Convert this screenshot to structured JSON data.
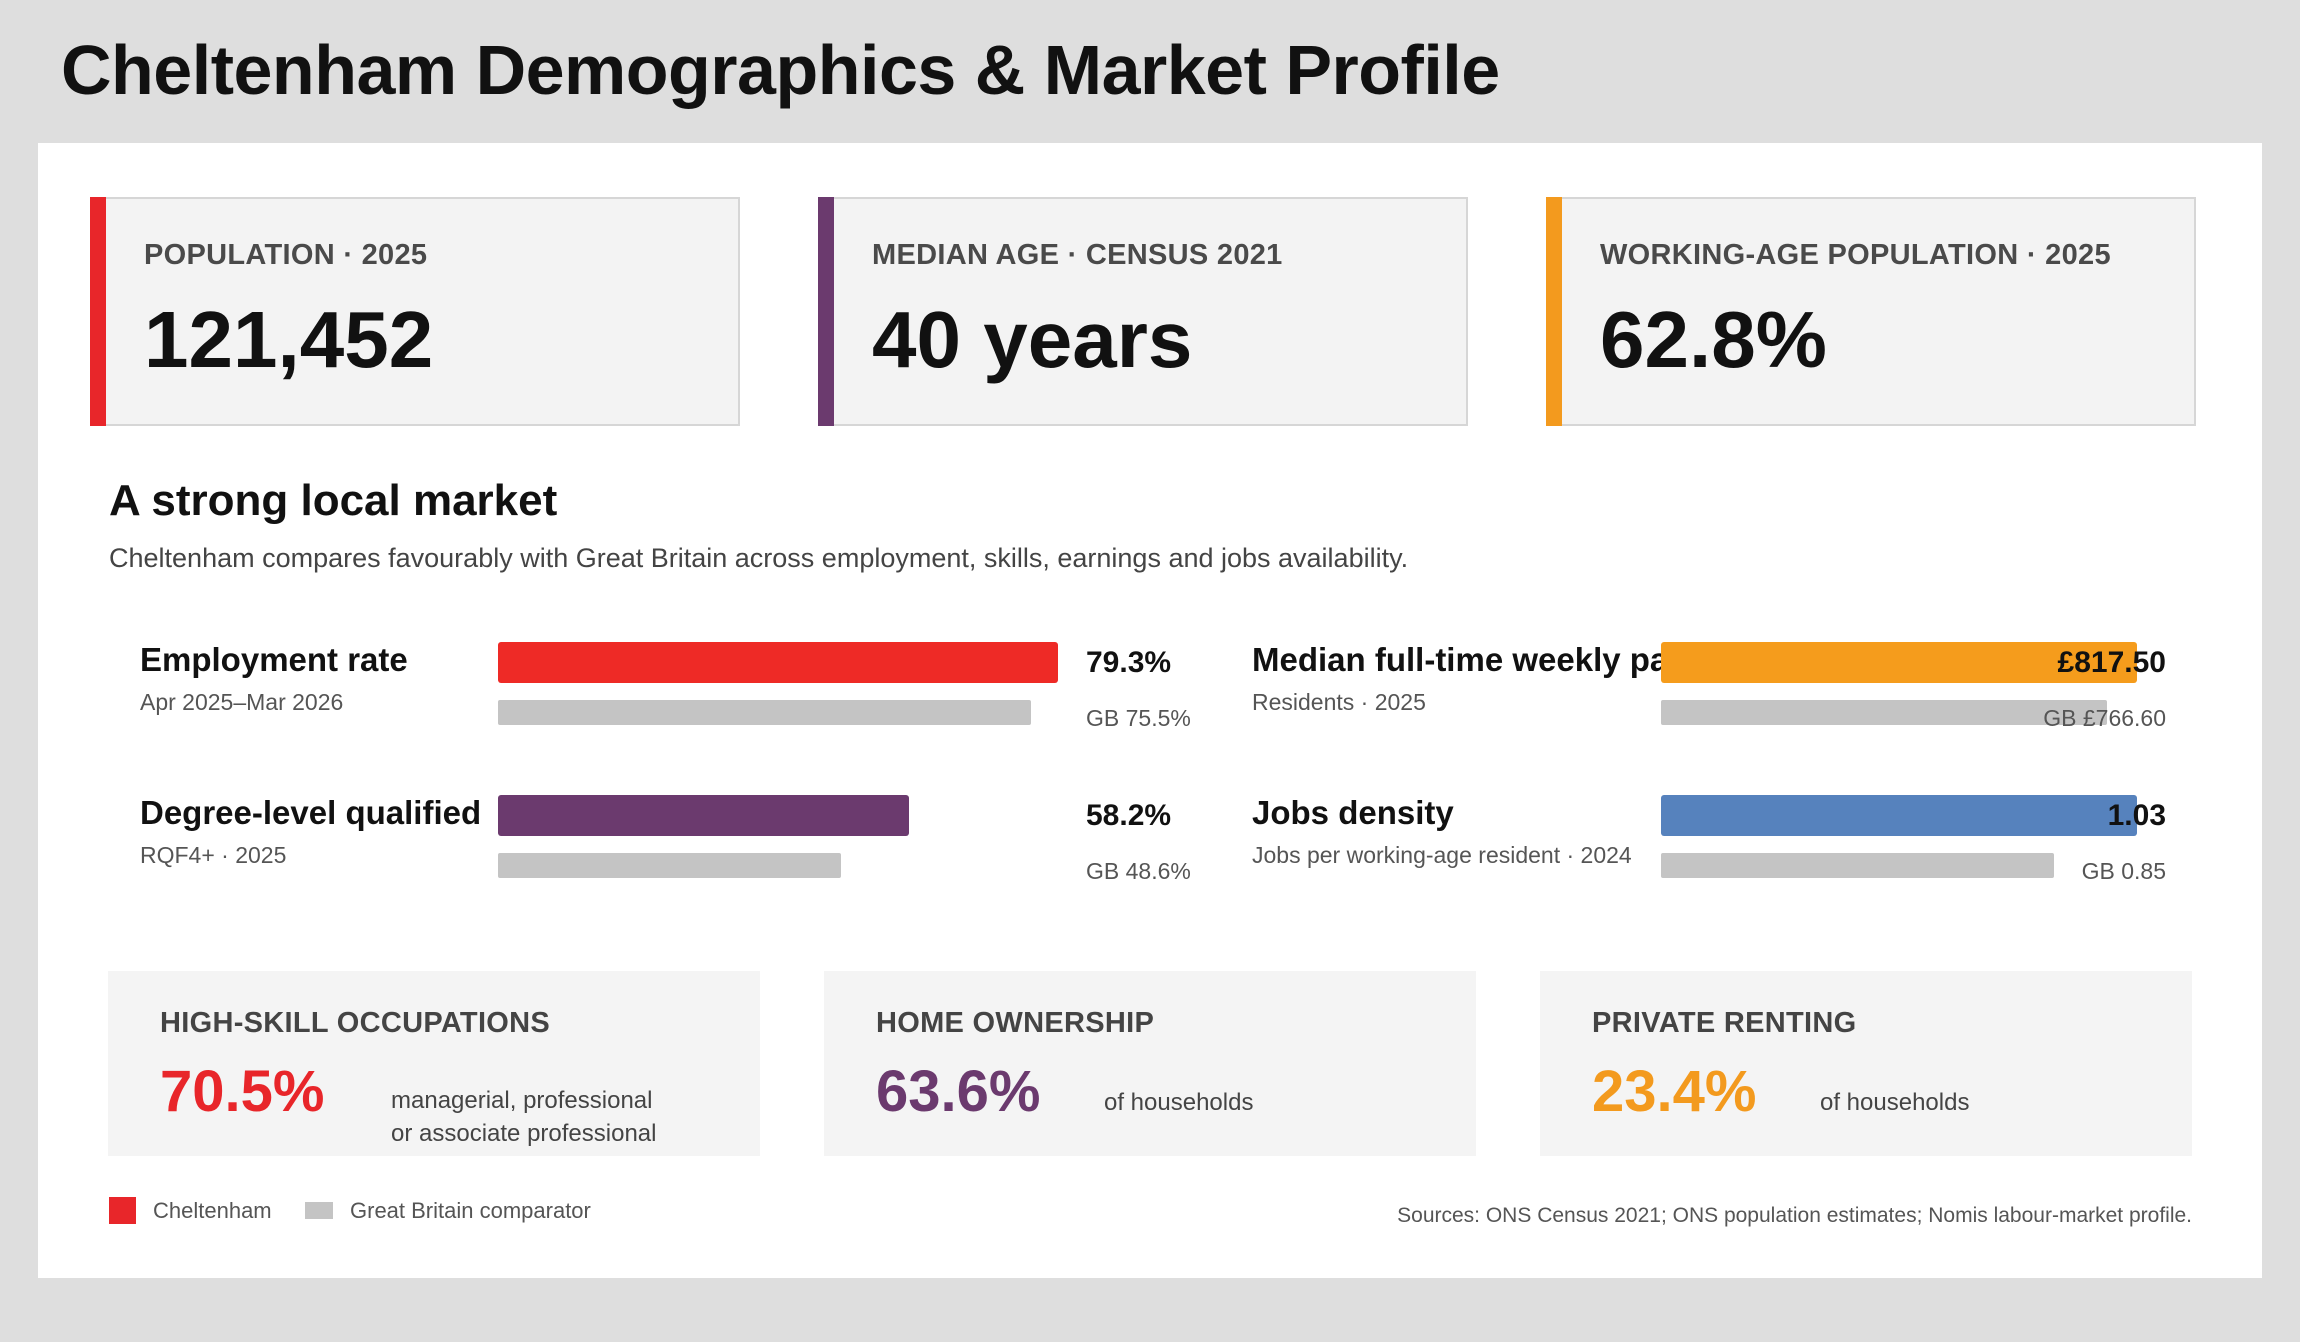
{
  "page": {
    "title": "Cheltenham Demographics & Market Profile"
  },
  "kpis": [
    {
      "label": "POPULATION · 2025",
      "value": "121,452",
      "accent": "#e8262a"
    },
    {
      "label": "MEDIAN AGE · CENSUS 2021",
      "value": "40 years",
      "accent": "#6b3a6e"
    },
    {
      "label": "WORKING-AGE POPULATION · 2025",
      "value": "62.8%",
      "accent": "#f39a1e"
    }
  ],
  "section": {
    "title": "A strong local market",
    "subtitle": "Cheltenham compares favourably with Great Britain across employment, skills, earnings and jobs availability."
  },
  "metrics": [
    {
      "label": "Employment rate",
      "sub": "Apr 2025–Mar 2026",
      "value_text": "79.3%",
      "gb_text": "GB 75.5%",
      "value": 79.3,
      "gb": 75.5,
      "color": "#ee2a26"
    },
    {
      "label": "Degree-level qualified",
      "sub": "RQF4+ · 2025",
      "value_text": "58.2%",
      "gb_text": "GB 48.6%",
      "value": 58.2,
      "gb": 48.6,
      "color": "#6b3a6e"
    },
    {
      "label": "Median full-time weekly pay",
      "sub": "Residents · 2025",
      "value_text": "£817.50",
      "gb_text": "GB £766.60",
      "value": 817.5,
      "gb": 766.6,
      "color": "#f59c1c"
    },
    {
      "label": "Jobs density",
      "sub": "Jobs per working-age resident · 2024",
      "value_text": "1.03",
      "gb_text": "GB 0.85",
      "value": 1.03,
      "gb": 0.85,
      "color": "#5682bd"
    }
  ],
  "stats": [
    {
      "label": "HIGH-SKILL OCCUPATIONS",
      "value": "70.5%",
      "desc_line1": "managerial, professional",
      "desc_line2": "or associate professional",
      "color": "#e8262a"
    },
    {
      "label": "HOME OWNERSHIP",
      "value": "63.6%",
      "desc_line1": "of households",
      "desc_line2": "",
      "color": "#6b3a6e"
    },
    {
      "label": "PRIVATE RENTING",
      "value": "23.4%",
      "desc_line1": "of households",
      "desc_line2": "",
      "color": "#f39a1e"
    }
  ],
  "legend": {
    "cheltenham": {
      "label": "Cheltenham",
      "color": "#e8262a"
    },
    "gb": {
      "label": "Great Britain comparator",
      "color": "#c4c4c4"
    }
  },
  "sources": "Sources: ONS Census 2021; ONS population estimates; Nomis labour-market profile."
}
